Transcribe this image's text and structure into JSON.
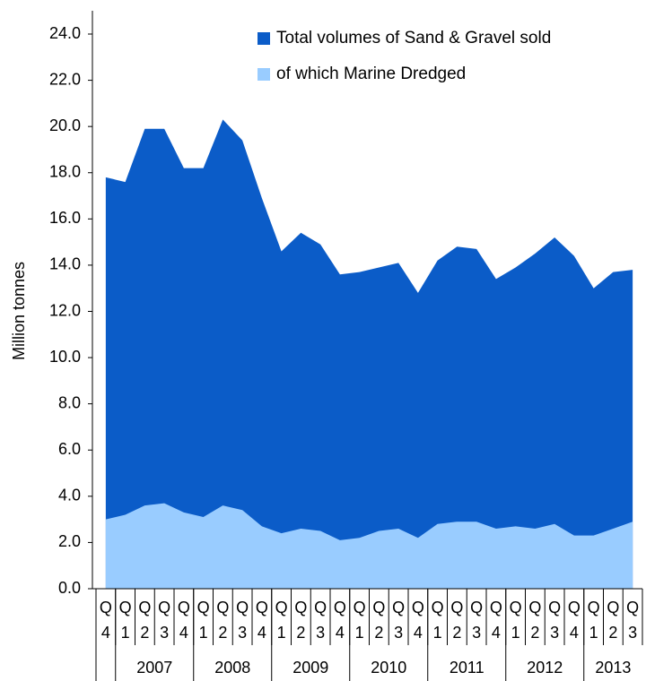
{
  "chart_data": {
    "type": "area",
    "y_label": "Million tonnes",
    "categories": [
      [
        "Q",
        "4"
      ],
      [
        "Q",
        "1"
      ],
      [
        "Q",
        "2"
      ],
      [
        "Q",
        "3"
      ],
      [
        "Q",
        "4"
      ],
      [
        "Q",
        "1"
      ],
      [
        "Q",
        "2"
      ],
      [
        "Q",
        "3"
      ],
      [
        "Q",
        "4"
      ],
      [
        "Q",
        "1"
      ],
      [
        "Q",
        "2"
      ],
      [
        "Q",
        "3"
      ],
      [
        "Q",
        "4"
      ],
      [
        "Q",
        "1"
      ],
      [
        "Q",
        "2"
      ],
      [
        "Q",
        "3"
      ],
      [
        "Q",
        "4"
      ],
      [
        "Q",
        "1"
      ],
      [
        "Q",
        "2"
      ],
      [
        "Q",
        "3"
      ],
      [
        "Q",
        "4"
      ],
      [
        "Q",
        "1"
      ],
      [
        "Q",
        "2"
      ],
      [
        "Q",
        "3"
      ],
      [
        "Q",
        "4"
      ],
      [
        "Q",
        "1"
      ],
      [
        "Q",
        "2"
      ],
      [
        "Q",
        "3"
      ]
    ],
    "groups": [
      {
        "label": null,
        "size": 1
      },
      {
        "label": "2007",
        "size": 4
      },
      {
        "label": "2008",
        "size": 4
      },
      {
        "label": "2009",
        "size": 4
      },
      {
        "label": "2010",
        "size": 4
      },
      {
        "label": "2011",
        "size": 4
      },
      {
        "label": "2012",
        "size": 4
      },
      {
        "label": "2013",
        "size": 3
      }
    ],
    "series": [
      {
        "name": "Total volumes of Sand & Gravel sold",
        "color": "#0b5cc8",
        "values": [
          17.8,
          17.6,
          19.9,
          19.9,
          18.2,
          18.2,
          20.3,
          19.4,
          16.9,
          14.6,
          15.4,
          14.9,
          13.6,
          13.7,
          13.9,
          14.1,
          12.8,
          14.2,
          14.8,
          14.7,
          13.4,
          13.9,
          14.5,
          15.2,
          14.4,
          13.0,
          13.7,
          13.8
        ]
      },
      {
        "name": "of which Marine Dredged",
        "color": "#99ccff",
        "values": [
          3.0,
          3.2,
          3.6,
          3.7,
          3.3,
          3.1,
          3.6,
          3.4,
          2.7,
          2.4,
          2.6,
          2.5,
          2.1,
          2.2,
          2.5,
          2.6,
          2.2,
          2.8,
          2.9,
          2.9,
          2.6,
          2.7,
          2.6,
          2.8,
          2.3,
          2.3,
          2.6,
          2.9
        ]
      }
    ],
    "ylim": [
      0,
      24
    ],
    "yticks": [
      {
        "value": 0,
        "label": "0.0"
      },
      {
        "value": 2,
        "label": "2.0"
      },
      {
        "value": 4,
        "label": "4.0"
      },
      {
        "value": 6,
        "label": "6.0"
      },
      {
        "value": 8,
        "label": "8.0"
      },
      {
        "value": 10,
        "label": "10.0"
      },
      {
        "value": 12,
        "label": "12.0"
      },
      {
        "value": 14,
        "label": "14.0"
      },
      {
        "value": 16,
        "label": "16.0"
      },
      {
        "value": 18,
        "label": "18.0"
      },
      {
        "value": 20,
        "label": "20.0"
      },
      {
        "value": 22,
        "label": "22.0"
      },
      {
        "value": 24,
        "label": "24.0"
      }
    ],
    "legend": "top-right"
  }
}
